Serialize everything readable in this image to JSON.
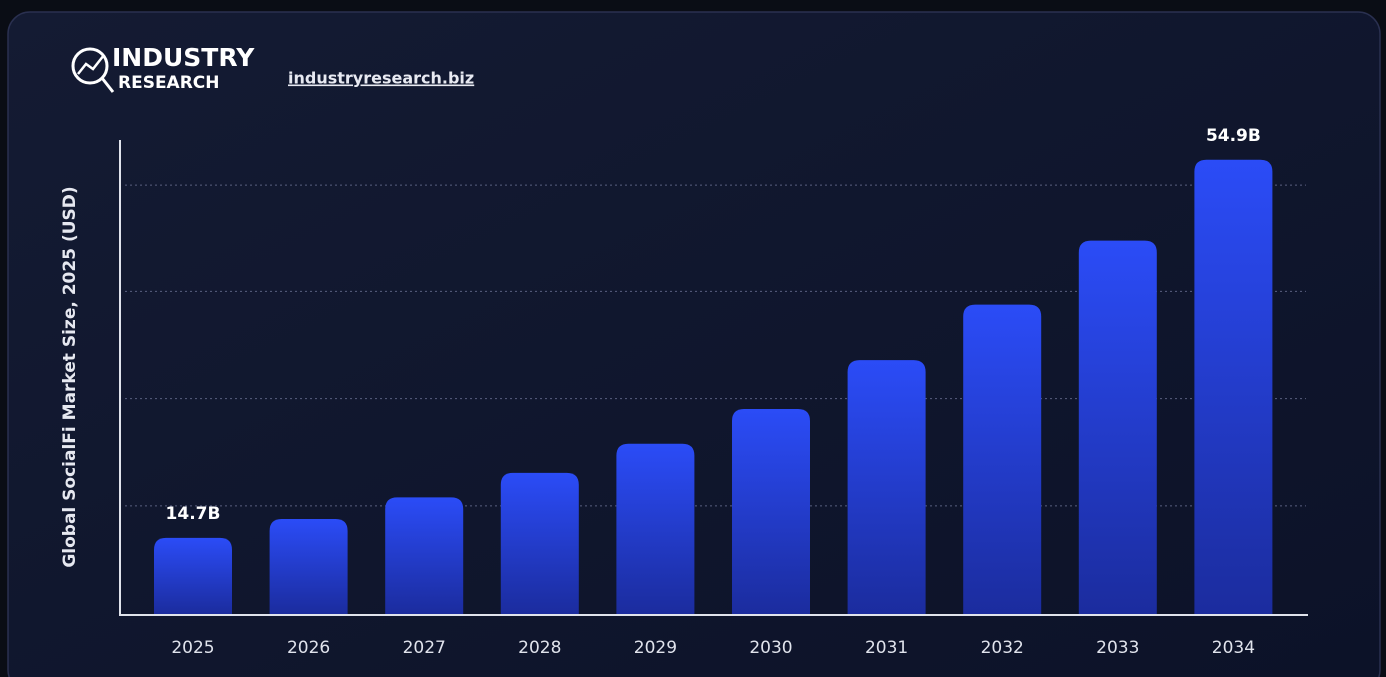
{
  "chart_data": {
    "type": "bar",
    "brand": {
      "line1": "INDUSTRY",
      "line2": "RESEARCH"
    },
    "link": "industryresearch.biz",
    "y_label": "Global SocialFi Market Size, 2025 (USD)",
    "categories": [
      "2025",
      "2026",
      "2027",
      "2028",
      "2029",
      "2030",
      "2031",
      "2032",
      "2033",
      "2034"
    ],
    "values": [
      14.7,
      16.7,
      19.0,
      21.6,
      24.7,
      28.4,
      33.6,
      39.5,
      46.3,
      54.9
    ],
    "value_labels": [
      "14.7B",
      null,
      null,
      null,
      null,
      null,
      null,
      null,
      null,
      "54.9B"
    ],
    "color": "#2a4af2",
    "ylim": [
      6.6,
      57
    ],
    "yticks": [
      18.1,
      29.5,
      40.9,
      52.2
    ],
    "grid": true
  }
}
